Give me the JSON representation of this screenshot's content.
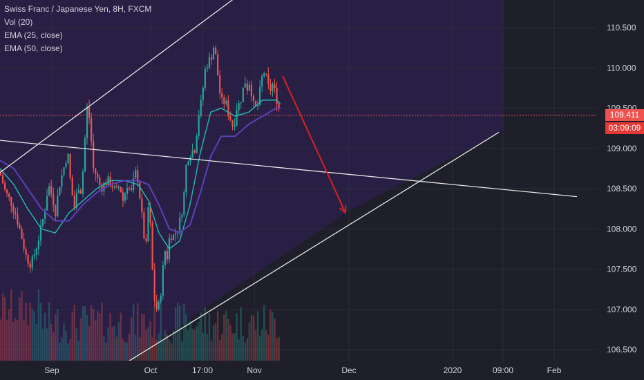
{
  "legend": {
    "symbol": "Swiss Franc / Japanese Yen, 8H, FXCM",
    "vol": "Vol (20)",
    "ema25": "EMA (25, close)",
    "ema50": "EMA (50, close)"
  },
  "price_badges": {
    "last_price": "109.411",
    "countdown": "03:09:09",
    "last_color": "#ef5350",
    "countdown_color": "#e53935"
  },
  "colors": {
    "background": "#1f1f2b",
    "channel_fill": "#2a1f45",
    "up": "#26a69a",
    "down": "#ef5350",
    "ema25": "#22b3b0",
    "ema50": "#5e3fbf",
    "trendline": "#e6e6e6",
    "arrow": "#d92222"
  },
  "chart_data": {
    "type": "candlestick",
    "y_axis": {
      "range": [
        106.4,
        110.85
      ],
      "ticks": [
        "110.500",
        "110.000",
        "109.500",
        "109.000",
        "108.500",
        "108.000",
        "107.500",
        "107.000",
        "106.500"
      ]
    },
    "x_axis": {
      "ticks": [
        "Sep",
        "Oct",
        "17:00",
        "Nov",
        "Dec",
        "2020",
        "09:00",
        "Feb"
      ]
    },
    "last_price": 109.411,
    "price_path": [
      [
        0,
        108.7
      ],
      [
        8,
        108.45
      ],
      [
        15,
        108.35
      ],
      [
        22,
        108.2
      ],
      [
        30,
        107.95
      ],
      [
        38,
        107.65
      ],
      [
        45,
        107.55
      ],
      [
        52,
        107.75
      ],
      [
        58,
        107.95
      ],
      [
        64,
        108.2
      ],
      [
        70,
        108.55
      ],
      [
        76,
        108.4
      ],
      [
        80,
        108.2
      ],
      [
        86,
        108.55
      ],
      [
        92,
        108.75
      ],
      [
        98,
        108.95
      ],
      [
        103,
        108.5
      ],
      [
        108,
        108.25
      ],
      [
        113,
        108.55
      ],
      [
        118,
        108.45
      ],
      [
        122,
        109.0
      ],
      [
        126,
        109.5
      ],
      [
        130,
        109.35
      ],
      [
        135,
        108.75
      ],
      [
        140,
        108.65
      ],
      [
        146,
        108.5
      ],
      [
        150,
        108.55
      ],
      [
        156,
        108.6
      ],
      [
        162,
        108.55
      ],
      [
        168,
        108.45
      ],
      [
        173,
        108.55
      ],
      [
        178,
        108.35
      ],
      [
        184,
        108.55
      ],
      [
        190,
        108.45
      ],
      [
        196,
        108.7
      ],
      [
        200,
        108.6
      ],
      [
        206,
        108.1
      ],
      [
        211,
        107.7
      ],
      [
        214,
        108.3
      ],
      [
        218,
        108.0
      ],
      [
        222,
        107.2
      ],
      [
        226,
        107.0
      ],
      [
        230,
        107.05
      ],
      [
        234,
        107.3
      ],
      [
        238,
        107.75
      ],
      [
        242,
        107.65
      ],
      [
        246,
        107.95
      ],
      [
        250,
        107.9
      ],
      [
        256,
        107.98
      ],
      [
        262,
        108.15
      ],
      [
        266,
        108.4
      ],
      [
        270,
        108.85
      ],
      [
        276,
        108.95
      ],
      [
        282,
        109.0
      ],
      [
        288,
        109.45
      ],
      [
        292,
        109.6
      ],
      [
        296,
        109.95
      ],
      [
        300,
        110.05
      ],
      [
        306,
        110.15
      ],
      [
        310,
        110.3
      ],
      [
        314,
        110.0
      ],
      [
        318,
        109.7
      ],
      [
        322,
        109.55
      ],
      [
        326,
        109.6
      ],
      [
        330,
        109.45
      ],
      [
        334,
        109.35
      ],
      [
        338,
        109.25
      ],
      [
        342,
        109.5
      ],
      [
        346,
        109.55
      ],
      [
        350,
        109.65
      ],
      [
        354,
        109.85
      ],
      [
        358,
        109.75
      ],
      [
        362,
        109.85
      ],
      [
        366,
        109.55
      ],
      [
        370,
        109.5
      ],
      [
        374,
        109.55
      ],
      [
        378,
        109.85
      ],
      [
        382,
        109.95
      ],
      [
        386,
        109.85
      ],
      [
        390,
        109.7
      ],
      [
        394,
        109.8
      ],
      [
        398,
        109.7
      ],
      [
        402,
        109.55
      ],
      [
        406,
        109.41
      ]
    ],
    "ema_25_path": [
      [
        0,
        108.75
      ],
      [
        20,
        108.55
      ],
      [
        40,
        108.25
      ],
      [
        60,
        108.0
      ],
      [
        80,
        107.95
      ],
      [
        100,
        108.2
      ],
      [
        120,
        108.35
      ],
      [
        140,
        108.5
      ],
      [
        160,
        108.6
      ],
      [
        180,
        108.6
      ],
      [
        200,
        108.55
      ],
      [
        215,
        108.35
      ],
      [
        230,
        107.95
      ],
      [
        245,
        107.75
      ],
      [
        260,
        107.85
      ],
      [
        275,
        108.3
      ],
      [
        290,
        108.95
      ],
      [
        305,
        109.45
      ],
      [
        320,
        109.5
      ],
      [
        340,
        109.4
      ],
      [
        360,
        109.45
      ],
      [
        380,
        109.6
      ],
      [
        400,
        109.6
      ],
      [
        406,
        109.55
      ]
    ],
    "ema_50_path": [
      [
        0,
        108.85
      ],
      [
        20,
        108.75
      ],
      [
        40,
        108.5
      ],
      [
        60,
        108.25
      ],
      [
        80,
        108.1
      ],
      [
        100,
        108.1
      ],
      [
        120,
        108.3
      ],
      [
        140,
        108.45
      ],
      [
        160,
        108.55
      ],
      [
        180,
        108.6
      ],
      [
        200,
        108.6
      ],
      [
        215,
        108.55
      ],
      [
        230,
        108.3
      ],
      [
        245,
        108.0
      ],
      [
        260,
        107.95
      ],
      [
        275,
        108.05
      ],
      [
        290,
        108.45
      ],
      [
        305,
        108.9
      ],
      [
        320,
        109.15
      ],
      [
        340,
        109.15
      ],
      [
        360,
        109.3
      ],
      [
        380,
        109.4
      ],
      [
        400,
        109.5
      ],
      [
        406,
        109.5
      ]
    ],
    "trendlines": [
      {
        "from": [
          0,
          108.7
        ],
        "to": [
          392,
          111.2
        ]
      },
      {
        "from": [
          0,
          109.1
        ],
        "to": [
          835,
          108.4
        ]
      },
      {
        "from": [
          185,
          106.35
        ],
        "to": [
          722,
          109.2
        ]
      }
    ],
    "projection_arrow": {
      "from": [
        409,
        109.9
      ],
      "to": [
        500,
        108.2
      ]
    }
  }
}
